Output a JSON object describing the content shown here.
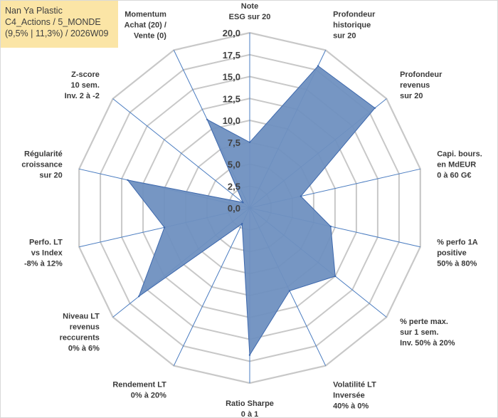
{
  "title": {
    "line1": "Nan Ya Plastic",
    "line2": "C4_Actions / 5_MONDE",
    "line3": "(9,5% | 11,3%) / 2026W09"
  },
  "colors": {
    "fill": "#6f90c0",
    "stroke": "#3d68ad",
    "grid": "#c8c8c8",
    "spoke": "#4a7cc0"
  },
  "chart_data": {
    "type": "radar",
    "rmin": 0,
    "rmax": 20,
    "step": 2.5,
    "tick_labels": [
      "0,0",
      "2,5",
      "5,0",
      "7,5",
      "10,0",
      "12,5",
      "15,0",
      "17,5",
      "20,0"
    ],
    "categories": [
      [
        "Note",
        "ESG sur 20"
      ],
      [
        "Profondeur",
        "historique",
        "sur 20"
      ],
      [
        "Profondeur",
        "revenus",
        "sur 20"
      ],
      [
        "Capi. bours.",
        "en MdEUR",
        "0 à 60 G€"
      ],
      [
        "% perfo 1A",
        "positive",
        "50% à 80%"
      ],
      [
        "% perte max.",
        "sur 1 sem.",
        "Inv. 50% à 20%"
      ],
      [
        "Volatilité LT",
        "Inversée",
        "40% à 0%"
      ],
      [
        "Ratio Sharpe",
        "0 à 1"
      ],
      [
        "Rendement LT",
        "0% à 20%"
      ],
      [
        "Niveau LT",
        "revenus",
        "reccurents",
        "0% à 6%"
      ],
      [
        "Perfo. LT",
        "vs Index",
        "-8% à 12%"
      ],
      [
        "Régularité",
        "croissance",
        "sur 20"
      ],
      [
        "Z-score",
        "10 sem.",
        "Inv. 2 à -2"
      ],
      [
        "Momentum",
        "Achat (20) /",
        "Vente (0)"
      ]
    ],
    "series": [
      {
        "name": "Nan Ya Plastic",
        "values": [
          7.5,
          18.0,
          18.3,
          6.0,
          9.5,
          12.5,
          10.5,
          16.8,
          2.0,
          16.2,
          10.0,
          14.3,
          1.0,
          11.2
        ]
      }
    ]
  }
}
